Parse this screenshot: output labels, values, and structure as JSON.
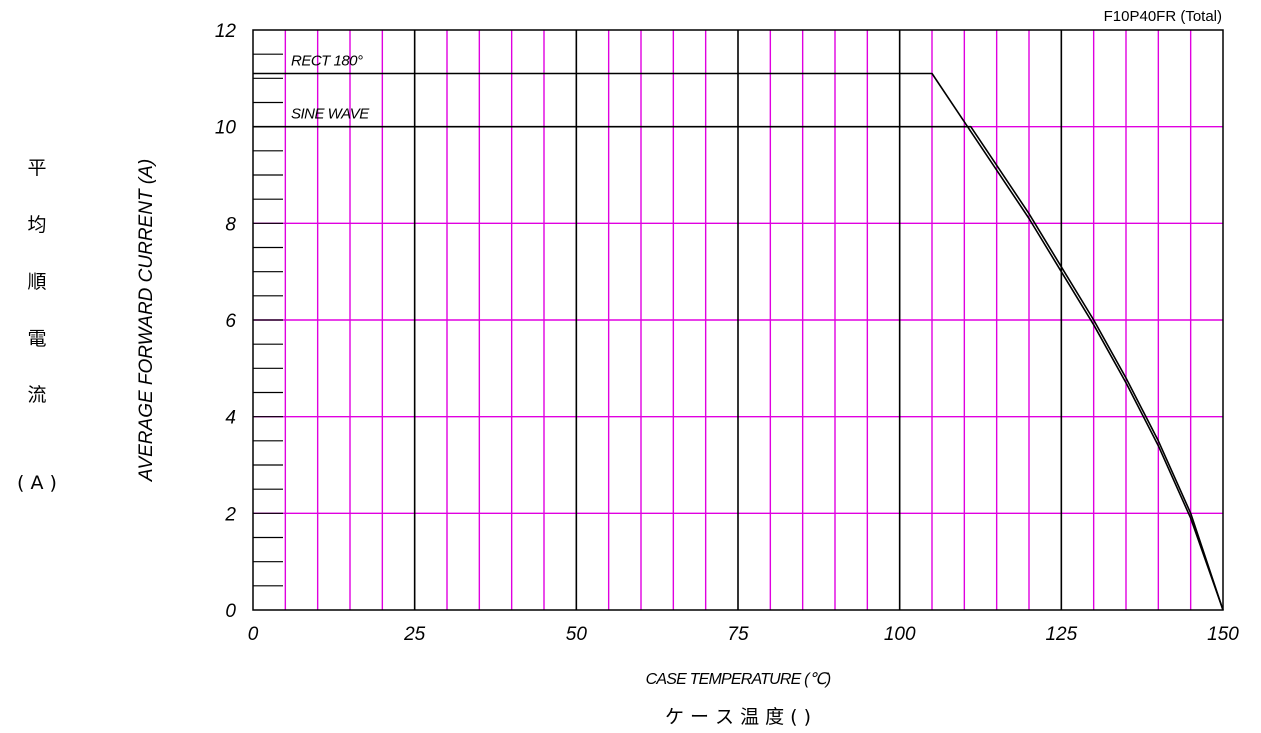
{
  "chart_data": {
    "type": "line",
    "title": "F10P40FR (Total)",
    "xlabel": "CASE TEMPERATURE (℃)",
    "xlabel_jp": "ケ ー ス 温 度 ( )",
    "ylabel": "AVERAGE FORWARD CURRENT (A)",
    "ylabel_jp": [
      "平",
      "均",
      "順",
      "電",
      "流",
      "( A )"
    ],
    "xlim": [
      0,
      150
    ],
    "ylim": [
      0,
      12
    ],
    "xticks": [
      "0",
      "25",
      "50",
      "75",
      "100",
      "125",
      "150"
    ],
    "yticks": [
      "0",
      "2",
      "4",
      "6",
      "8",
      "10",
      "12"
    ],
    "grid": true,
    "colors": {
      "major_grid": "#000000",
      "minor_grid": "#e000e0",
      "curve": "#000000"
    },
    "series": [
      {
        "name": "RECT 180°",
        "x": [
          0,
          105,
          110,
          115,
          120,
          125,
          130,
          135,
          140,
          145,
          150
        ],
        "y": [
          11.1,
          11.1,
          10.1,
          9.1,
          8.1,
          7.0,
          5.9,
          4.7,
          3.4,
          1.9,
          0
        ]
      },
      {
        "name": "SINE WAVE",
        "x": [
          0,
          111,
          115,
          120,
          125,
          130,
          135,
          140,
          145,
          150
        ],
        "y": [
          10,
          10,
          9.2,
          8.2,
          7.1,
          6.0,
          4.8,
          3.5,
          2.0,
          0
        ]
      }
    ]
  }
}
